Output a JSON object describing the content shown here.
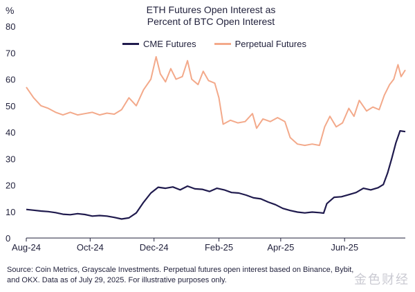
{
  "title_line1": "ETH Futures Open Interest as",
  "title_line2": "Percent of BTC Open Interest",
  "footnote_line1": "Source: Coin Metrics, Grayscale Investments. Perpetual futures open interest based on Binance, Bybit,",
  "footnote_line2": "and OKX. Data as of July 29, 2025. For illustrative purposes only.",
  "watermark": "金色财经",
  "chart_data": {
    "type": "line",
    "ylabel": "%",
    "ylim": [
      0,
      80
    ],
    "yticks": [
      0,
      10,
      20,
      30,
      40,
      50,
      60,
      70,
      80
    ],
    "xlim": [
      "2024-08-01",
      "2025-07-29"
    ],
    "xticks": [
      {
        "date": "2024-08-01",
        "label": "Aug-24"
      },
      {
        "date": "2024-10-01",
        "label": "Oct-24"
      },
      {
        "date": "2024-12-01",
        "label": "Dec-24"
      },
      {
        "date": "2025-02-01",
        "label": "Feb-25"
      },
      {
        "date": "2025-04-01",
        "label": "Apr-25"
      },
      {
        "date": "2025-06-01",
        "label": "Jun-25"
      }
    ],
    "legend_position": "top",
    "series": [
      {
        "name": "CME Futures",
        "color": "#1f1a4d",
        "points": [
          [
            "2024-08-01",
            10.8
          ],
          [
            "2024-08-08",
            10.5
          ],
          [
            "2024-08-15",
            10.2
          ],
          [
            "2024-08-22",
            10.0
          ],
          [
            "2024-08-29",
            9.6
          ],
          [
            "2024-09-05",
            9.0
          ],
          [
            "2024-09-12",
            8.8
          ],
          [
            "2024-09-19",
            9.2
          ],
          [
            "2024-09-26",
            8.9
          ],
          [
            "2024-10-03",
            8.3
          ],
          [
            "2024-10-10",
            8.5
          ],
          [
            "2024-10-17",
            8.3
          ],
          [
            "2024-10-24",
            7.8
          ],
          [
            "2024-10-31",
            7.2
          ],
          [
            "2024-11-07",
            7.6
          ],
          [
            "2024-11-14",
            9.5
          ],
          [
            "2024-11-21",
            13.5
          ],
          [
            "2024-11-28",
            17.0
          ],
          [
            "2024-12-05",
            19.2
          ],
          [
            "2024-12-12",
            18.8
          ],
          [
            "2024-12-19",
            19.3
          ],
          [
            "2024-12-26",
            18.2
          ],
          [
            "2025-01-02",
            19.6
          ],
          [
            "2025-01-09",
            18.6
          ],
          [
            "2025-01-16",
            18.4
          ],
          [
            "2025-01-23",
            17.6
          ],
          [
            "2025-01-30",
            18.8
          ],
          [
            "2025-02-06",
            18.2
          ],
          [
            "2025-02-13",
            17.2
          ],
          [
            "2025-02-20",
            17.0
          ],
          [
            "2025-02-27",
            16.2
          ],
          [
            "2025-03-06",
            15.2
          ],
          [
            "2025-03-13",
            14.8
          ],
          [
            "2025-03-20",
            13.6
          ],
          [
            "2025-03-27",
            12.6
          ],
          [
            "2025-04-03",
            11.2
          ],
          [
            "2025-04-10",
            10.4
          ],
          [
            "2025-04-17",
            9.8
          ],
          [
            "2025-04-24",
            9.5
          ],
          [
            "2025-05-01",
            9.8
          ],
          [
            "2025-05-08",
            9.6
          ],
          [
            "2025-05-12",
            9.4
          ],
          [
            "2025-05-15",
            13.0
          ],
          [
            "2025-05-22",
            15.4
          ],
          [
            "2025-05-29",
            15.6
          ],
          [
            "2025-06-05",
            16.4
          ],
          [
            "2025-06-12",
            17.2
          ],
          [
            "2025-06-19",
            18.8
          ],
          [
            "2025-06-26",
            18.2
          ],
          [
            "2025-07-03",
            19.0
          ],
          [
            "2025-07-08",
            20.2
          ],
          [
            "2025-07-12",
            24.5
          ],
          [
            "2025-07-16",
            30.0
          ],
          [
            "2025-07-20",
            36.0
          ],
          [
            "2025-07-24",
            40.5
          ],
          [
            "2025-07-29",
            40.2
          ]
        ]
      },
      {
        "name": "Perpetual Futures",
        "color": "#f3a98a",
        "points": [
          [
            "2024-08-01",
            57.0
          ],
          [
            "2024-08-08",
            53.0
          ],
          [
            "2024-08-15",
            50.0
          ],
          [
            "2024-08-22",
            49.0
          ],
          [
            "2024-08-29",
            47.5
          ],
          [
            "2024-09-05",
            46.5
          ],
          [
            "2024-09-12",
            47.5
          ],
          [
            "2024-09-19",
            46.5
          ],
          [
            "2024-09-26",
            47.0
          ],
          [
            "2024-10-03",
            47.5
          ],
          [
            "2024-10-10",
            46.5
          ],
          [
            "2024-10-17",
            47.2
          ],
          [
            "2024-10-24",
            46.8
          ],
          [
            "2024-10-31",
            48.5
          ],
          [
            "2024-11-07",
            53.0
          ],
          [
            "2024-11-14",
            50.0
          ],
          [
            "2024-11-21",
            56.0
          ],
          [
            "2024-11-28",
            60.0
          ],
          [
            "2024-12-03",
            68.5
          ],
          [
            "2024-12-07",
            62.0
          ],
          [
            "2024-12-12",
            59.0
          ],
          [
            "2024-12-17",
            64.0
          ],
          [
            "2024-12-22",
            60.0
          ],
          [
            "2024-12-28",
            61.0
          ],
          [
            "2025-01-02",
            67.0
          ],
          [
            "2025-01-06",
            60.0
          ],
          [
            "2025-01-12",
            58.0
          ],
          [
            "2025-01-17",
            63.0
          ],
          [
            "2025-01-22",
            59.5
          ],
          [
            "2025-01-28",
            58.5
          ],
          [
            "2025-02-01",
            53.0
          ],
          [
            "2025-02-05",
            43.0
          ],
          [
            "2025-02-12",
            44.5
          ],
          [
            "2025-02-19",
            43.5
          ],
          [
            "2025-02-26",
            44.0
          ],
          [
            "2025-03-05",
            47.0
          ],
          [
            "2025-03-09",
            41.5
          ],
          [
            "2025-03-15",
            45.0
          ],
          [
            "2025-03-22",
            44.0
          ],
          [
            "2025-03-29",
            45.5
          ],
          [
            "2025-04-05",
            44.0
          ],
          [
            "2025-04-10",
            38.0
          ],
          [
            "2025-04-17",
            35.5
          ],
          [
            "2025-04-24",
            35.0
          ],
          [
            "2025-05-01",
            35.5
          ],
          [
            "2025-05-08",
            35.0
          ],
          [
            "2025-05-13",
            42.0
          ],
          [
            "2025-05-18",
            46.0
          ],
          [
            "2025-05-24",
            42.0
          ],
          [
            "2025-05-30",
            43.5
          ],
          [
            "2025-06-05",
            49.0
          ],
          [
            "2025-06-10",
            46.0
          ],
          [
            "2025-06-15",
            52.0
          ],
          [
            "2025-06-22",
            48.0
          ],
          [
            "2025-06-28",
            49.5
          ],
          [
            "2025-07-04",
            48.5
          ],
          [
            "2025-07-09",
            54.0
          ],
          [
            "2025-07-14",
            58.0
          ],
          [
            "2025-07-18",
            60.0
          ],
          [
            "2025-07-22",
            65.5
          ],
          [
            "2025-07-25",
            61.0
          ],
          [
            "2025-07-29",
            63.5
          ]
        ]
      }
    ]
  }
}
